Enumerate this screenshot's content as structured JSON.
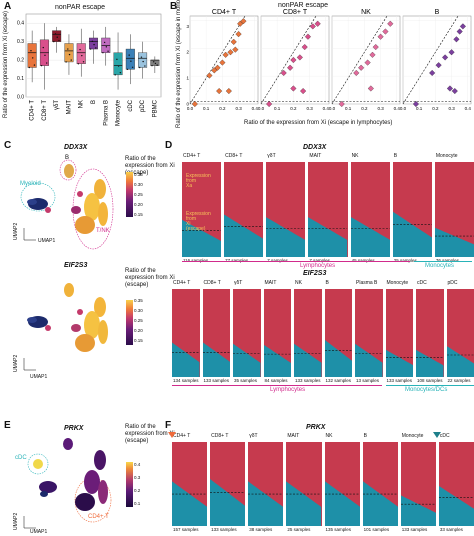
{
  "panelA": {
    "label": "A",
    "title": "nonPAR escape",
    "ylabel": "Ratio of the expression from Xi (escape)",
    "yticks": [
      "0.0",
      "0.1",
      "0.2",
      "0.3",
      "0.4"
    ],
    "categories": [
      "CD4+ T",
      "CD8+ T",
      "γδT",
      "MAIT",
      "NK",
      "B",
      "Plasma B",
      "Monocyte",
      "cDC",
      "pDC",
      "PBMC"
    ],
    "colors": [
      "#e8743b",
      "#d94f8b",
      "#8b1a2b",
      "#e6a04d",
      "#e16a9b",
      "#7b3f9e",
      "#c06cc0",
      "#2aa6a8",
      "#3a80b8",
      "#9ac3de",
      "#7f7f7f"
    ]
  },
  "panelB": {
    "label": "B",
    "title": "nonPAR escape",
    "ylabel": "Ratio of the expression from Xi (escape in monocytes)",
    "xlabel": "Ratio of the expression from Xi (escape in lymphocytes)",
    "facets": [
      "CD4+ T",
      "CD8+ T",
      "NK",
      "B"
    ],
    "xticks": [
      "0.0",
      "0.1",
      "0.2",
      "0.3",
      "0.4"
    ],
    "yticks": [
      "0.0",
      "0.1",
      "0.2",
      "0.3"
    ]
  },
  "panelC": {
    "label": "C",
    "gene1": "DDX3X",
    "gene2": "EIF2S3",
    "cluster_b": "B",
    "cluster_myeloid": "Myeloid",
    "cluster_tnk": "T/NK",
    "legend_title": "Ratio of the expression from Xi (escape)",
    "legend1_ticks": [
      "0.35",
      "0.30",
      "0.25",
      "0.20",
      "0.15"
    ],
    "legend2_ticks": [
      "0.35",
      "0.30",
      "0.25",
      "0.20",
      "0.15"
    ],
    "umap1": "UMAP1",
    "umap2": "UMAP2"
  },
  "panelD": {
    "label": "D",
    "gene1": "DDX3X",
    "gene2": "EIF2S3",
    "annot_xa": "Expression from Xa",
    "annot_xi": "Expression from Xi (escape)",
    "row1": [
      {
        "name": "CD4+ T",
        "count": "116 samples"
      },
      {
        "name": "CD8+ T",
        "count": "77 samples"
      },
      {
        "name": "γδT",
        "count": "7 samples"
      },
      {
        "name": "MAIT",
        "count": "7 samples"
      },
      {
        "name": "NK",
        "count": "45 samples"
      },
      {
        "name": "B",
        "count": "25 samples"
      },
      {
        "name": "Monocyte",
        "count": "76 samples"
      }
    ],
    "row1_group1": "Lymphocytes",
    "row1_group2": "Monocytes",
    "row2": [
      {
        "name": "CD4+ T",
        "count": "134 samples"
      },
      {
        "name": "CD8+ T",
        "count": "133 samples"
      },
      {
        "name": "γδT",
        "count": "35 samples"
      },
      {
        "name": "MAIT",
        "count": "84 samples"
      },
      {
        "name": "NK",
        "count": "133 samples"
      },
      {
        "name": "B",
        "count": "132 samples"
      },
      {
        "name": "Plasma B",
        "count": "13 samples"
      },
      {
        "name": "Monocyte",
        "count": "133 samples"
      },
      {
        "name": "cDC",
        "count": "108 samples"
      },
      {
        "name": "pDC",
        "count": "22 samples"
      }
    ],
    "row2_group1": "Lymphocytes",
    "row2_group2": "Monocytes/DCs"
  },
  "panelE": {
    "label": "E",
    "gene": "PRKX",
    "cluster_cdc": "cDC",
    "cluster_cd4": "CD4+ T",
    "legend_title": "Ratio of the expression from Xi (escape)",
    "legend_ticks": [
      "0.4",
      "0.3",
      "0.2",
      "0.1"
    ],
    "umap1": "UMAP1",
    "umap2": "UMAP2"
  },
  "panelF": {
    "label": "F",
    "gene": "PRKX",
    "row": [
      {
        "name": "CD4+ T",
        "count": "157 samples"
      },
      {
        "name": "CD8+ T",
        "count": "133 samples"
      },
      {
        "name": "γδT",
        "count": "38 samples"
      },
      {
        "name": "MAIT",
        "count": "25 samples"
      },
      {
        "name": "NK",
        "count": "135 samples"
      },
      {
        "name": "B",
        "count": "101 samples"
      },
      {
        "name": "Monocyte",
        "count": "133 samples"
      },
      {
        "name": "cDC",
        "count": "33 samples"
      }
    ]
  },
  "colors": {
    "xa": "#c63a4e",
    "xi": "#1e90a8",
    "lymph": "#d12b8c",
    "mono": "#29b3b8"
  }
}
